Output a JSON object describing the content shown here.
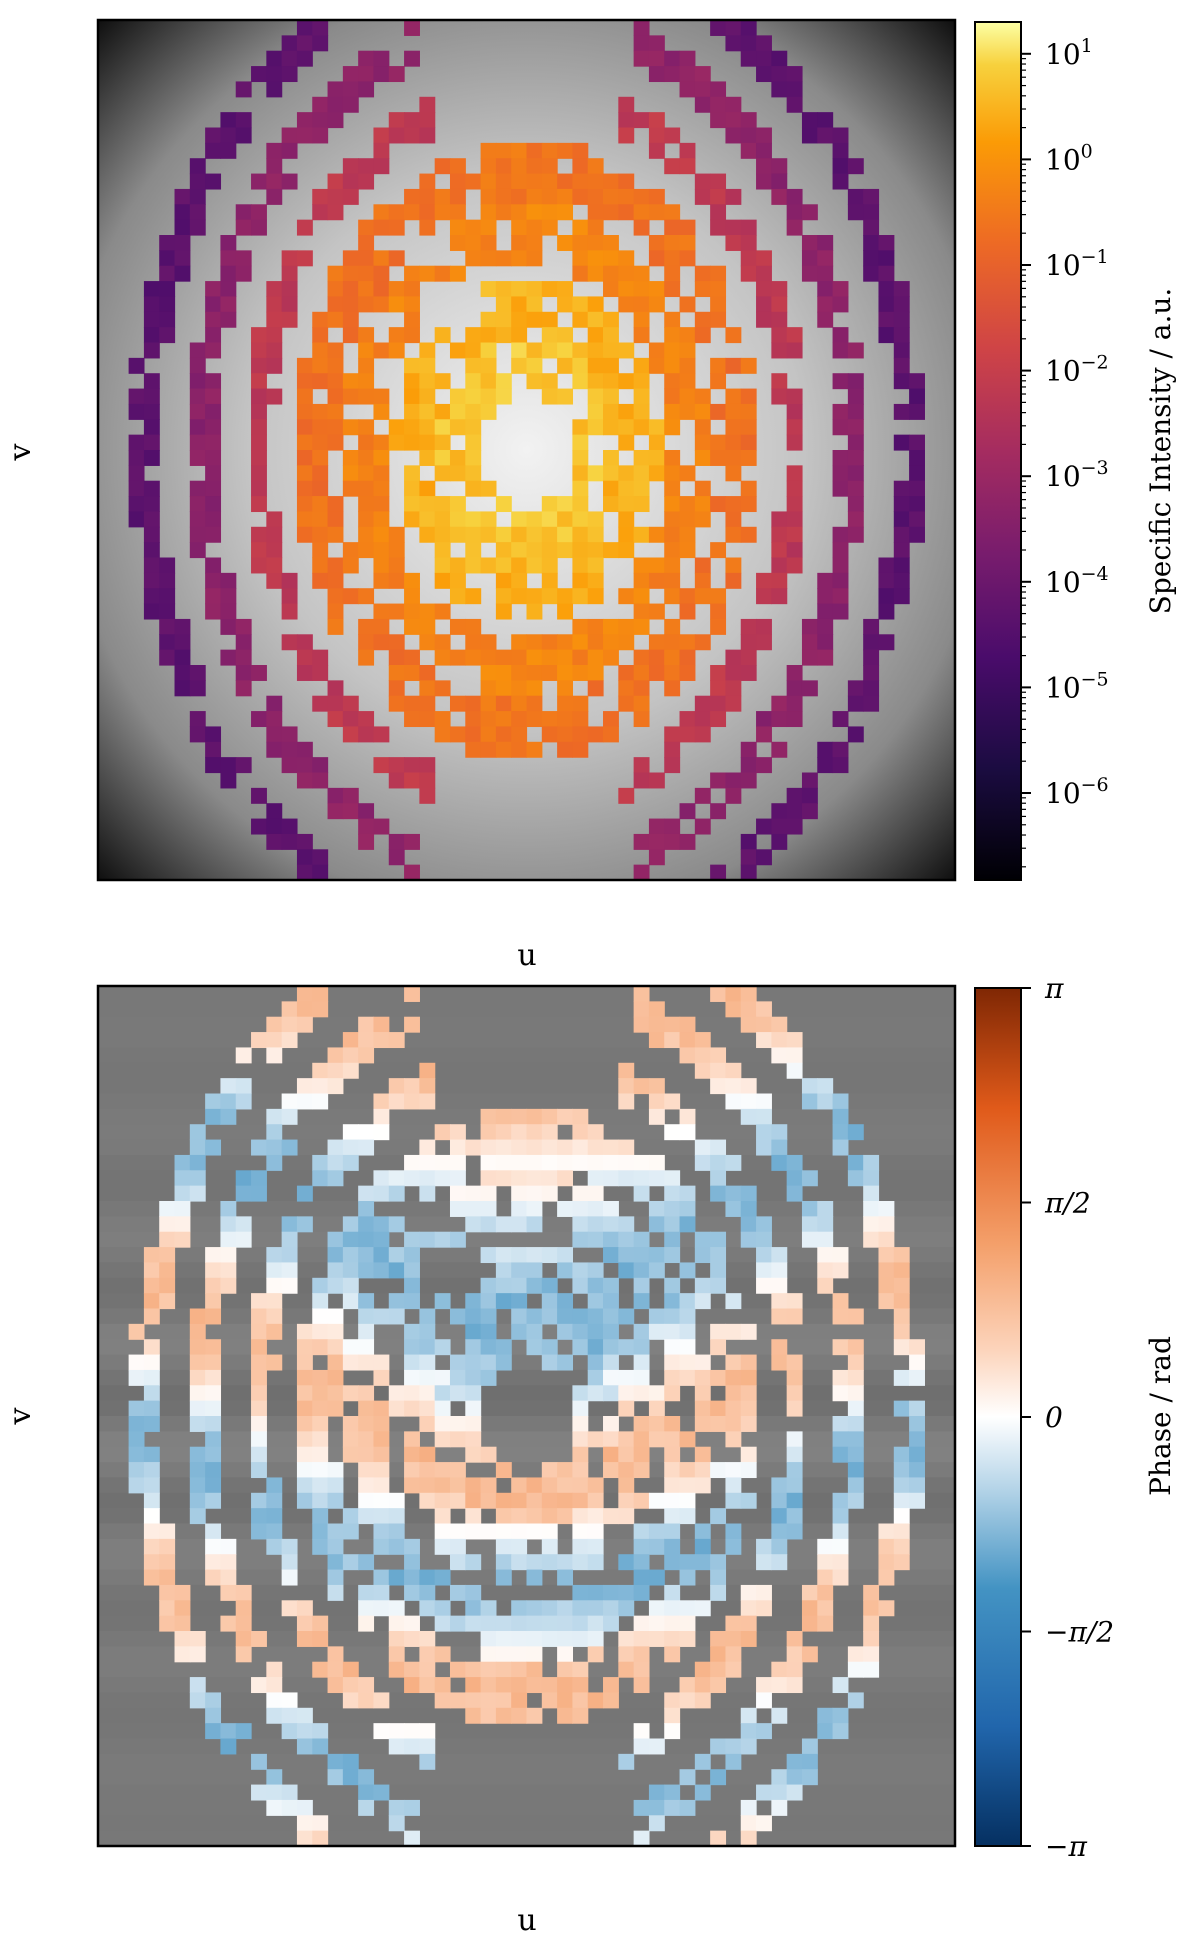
{
  "chart_data": [
    {
      "type": "heatmap",
      "panel": "top",
      "title": "",
      "xlabel": "u",
      "ylabel": "v",
      "colorbar": {
        "label": "Specific Intensity / a.u.",
        "scale": "log",
        "colormap": "inferno",
        "range": [
          1.5e-07,
          20
        ],
        "ticks": [
          {
            "base": "10",
            "exp": "1",
            "value": 10
          },
          {
            "base": "10",
            "exp": "0",
            "value": 1
          },
          {
            "base": "10",
            "exp": "−1",
            "value": 0.1
          },
          {
            "base": "10",
            "exp": "−2",
            "value": 0.01
          },
          {
            "base": "10",
            "exp": "−3",
            "value": 0.001
          },
          {
            "base": "10",
            "exp": "−4",
            "value": 0.0001
          },
          {
            "base": "10",
            "exp": "−5",
            "value": 1e-05
          },
          {
            "base": "10",
            "exp": "−6",
            "value": 1e-06
          }
        ]
      },
      "background": "grayscale radial falloff, bright centre, dark corners",
      "grid_resolution": [
        56,
        56
      ],
      "pattern": "nested elliptical rings of coloured pixels; intensity decreases from the centre (~1) outward (~1e-6)",
      "axis_ticks": "none shown"
    },
    {
      "type": "heatmap",
      "panel": "bottom",
      "title": "",
      "xlabel": "u",
      "ylabel": "v",
      "colorbar": {
        "label": "Phase / rad",
        "scale": "linear",
        "colormap": "diverging blue–white–red",
        "range": [
          -3.14159,
          3.14159
        ],
        "ticks": [
          {
            "label": "π",
            "value": 3.14159
          },
          {
            "label": "π/2",
            "value": 1.5708
          },
          {
            "label": "0",
            "value": 0
          },
          {
            "label": "−π/2",
            "value": -1.5708
          },
          {
            "label": "−π",
            "value": -3.14159
          }
        ]
      },
      "background": "uniform gray with faint horizontal banding",
      "grid_resolution": [
        56,
        56
      ],
      "pattern": "same ring geometry as top panel; phase values mostly within ±π/2, alternating light orange and light blue bands",
      "axis_ticks": "none shown"
    }
  ],
  "colors": {
    "background_gray": "#7f7f7f",
    "phase_positive": "#f6a56b",
    "phase_negative": "#8ec1dd",
    "intensity_peak": "#fcffa4"
  }
}
